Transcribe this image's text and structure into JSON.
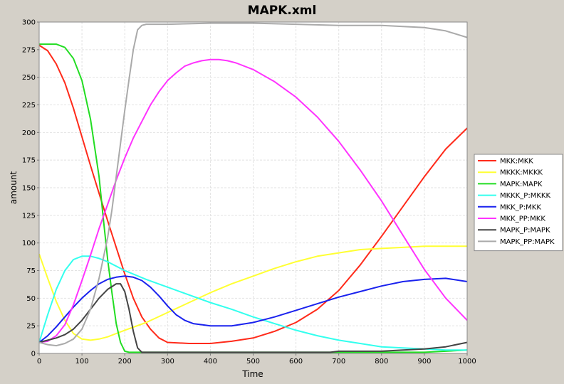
{
  "chart_data": {
    "type": "line",
    "title": "MAPK.xml",
    "xlabel": "Time",
    "ylabel": "amount",
    "xlim": [
      0,
      1000
    ],
    "ylim": [
      0,
      300
    ],
    "xticks": [
      0,
      100,
      200,
      300,
      400,
      500,
      600,
      700,
      800,
      900,
      1000
    ],
    "yticks": [
      0,
      25,
      50,
      75,
      100,
      125,
      150,
      175,
      200,
      225,
      250,
      275,
      300
    ],
    "grid": true,
    "legend_position": "right",
    "series": [
      {
        "name": "MKK:MKK",
        "color": "#ff2a1a",
        "x": [
          0,
          20,
          40,
          60,
          80,
          100,
          120,
          140,
          160,
          180,
          200,
          220,
          240,
          260,
          280,
          300,
          350,
          400,
          450,
          500,
          550,
          600,
          650,
          700,
          750,
          800,
          850,
          900,
          950,
          1000
        ],
        "y": [
          279,
          274,
          262,
          245,
          222,
          196,
          170,
          145,
          120,
          96,
          72,
          50,
          33,
          22,
          14,
          10,
          9,
          9,
          11,
          14,
          20,
          28,
          40,
          57,
          80,
          106,
          133,
          160,
          185,
          204
        ]
      },
      {
        "name": "MKKK:MKKK",
        "color": "#ffff33",
        "x": [
          0,
          20,
          40,
          60,
          80,
          100,
          120,
          140,
          160,
          180,
          200,
          250,
          300,
          350,
          400,
          450,
          500,
          550,
          600,
          650,
          700,
          750,
          800,
          850,
          900,
          950,
          1000
        ],
        "y": [
          90,
          68,
          47,
          30,
          18,
          13,
          12,
          13,
          15,
          18,
          21,
          28,
          37,
          46,
          55,
          63,
          70,
          77,
          83,
          88,
          91,
          94,
          95,
          96,
          97,
          97,
          97
        ]
      },
      {
        "name": "MAPK:MAPK",
        "color": "#22dd22",
        "x": [
          0,
          20,
          40,
          60,
          80,
          100,
          120,
          140,
          150,
          160,
          170,
          180,
          190,
          200,
          210,
          220,
          240,
          300,
          400,
          500,
          600,
          700,
          800,
          900,
          950,
          1000
        ],
        "y": [
          280,
          280,
          280,
          277,
          267,
          247,
          212,
          160,
          122,
          85,
          55,
          27,
          10,
          2,
          1,
          1,
          1,
          1,
          1,
          1,
          1,
          1,
          1,
          1,
          2,
          3
        ]
      },
      {
        "name": "MKKK_P:MKKK",
        "color": "#33ffee",
        "x": [
          0,
          20,
          40,
          60,
          80,
          100,
          120,
          140,
          160,
          180,
          200,
          250,
          300,
          350,
          400,
          450,
          500,
          550,
          600,
          650,
          700,
          750,
          800,
          850,
          900,
          950,
          1000
        ],
        "y": [
          10,
          35,
          58,
          75,
          85,
          88,
          88,
          86,
          83,
          79,
          75,
          67,
          60,
          53,
          46,
          40,
          33,
          27,
          21,
          16,
          12,
          9,
          6,
          5,
          4,
          3,
          3
        ]
      },
      {
        "name": "MKK_P:MKK",
        "color": "#1a22ee",
        "x": [
          0,
          20,
          40,
          60,
          80,
          100,
          120,
          140,
          160,
          180,
          200,
          220,
          240,
          260,
          280,
          300,
          320,
          340,
          360,
          380,
          400,
          420,
          450,
          500,
          550,
          600,
          650,
          700,
          750,
          800,
          850,
          900,
          950,
          1000
        ],
        "y": [
          10,
          16,
          24,
          33,
          42,
          50,
          57,
          63,
          67,
          69,
          70,
          69,
          66,
          60,
          52,
          43,
          35,
          30,
          27,
          26,
          25,
          25,
          25,
          28,
          33,
          39,
          45,
          51,
          56,
          61,
          65,
          67,
          68,
          65
        ]
      },
      {
        "name": "MKK_PP:MKK",
        "color": "#ff33ff",
        "x": [
          0,
          20,
          40,
          60,
          80,
          100,
          120,
          140,
          160,
          180,
          200,
          220,
          240,
          260,
          280,
          300,
          320,
          340,
          360,
          380,
          400,
          420,
          440,
          460,
          500,
          550,
          600,
          650,
          700,
          750,
          800,
          850,
          900,
          950,
          1000
        ],
        "y": [
          10,
          11,
          16,
          26,
          44,
          66,
          89,
          113,
          135,
          157,
          177,
          195,
          210,
          225,
          237,
          247,
          254,
          260,
          263,
          265,
          266,
          266,
          265,
          263,
          257,
          246,
          232,
          214,
          192,
          166,
          138,
          107,
          76,
          50,
          30
        ]
      },
      {
        "name": "MAPK_P:MAPK",
        "color": "#444444",
        "x": [
          0,
          20,
          40,
          60,
          80,
          100,
          120,
          140,
          160,
          180,
          190,
          200,
          210,
          220,
          230,
          240,
          250,
          300,
          400,
          500,
          600,
          680,
          700,
          800,
          850,
          900,
          950,
          1000
        ],
        "y": [
          10,
          12,
          14,
          17,
          22,
          30,
          40,
          50,
          58,
          63,
          63,
          56,
          40,
          20,
          5,
          1,
          1,
          1,
          1,
          1,
          1,
          1,
          2,
          2,
          3,
          4,
          6,
          10
        ]
      },
      {
        "name": "MAPK_PP:MAPK",
        "color": "#aaaaaa",
        "x": [
          0,
          20,
          40,
          60,
          80,
          100,
          120,
          140,
          160,
          170,
          180,
          190,
          200,
          210,
          220,
          230,
          240,
          250,
          260,
          300,
          400,
          500,
          600,
          700,
          800,
          850,
          900,
          950,
          1000
        ],
        "y": [
          10,
          8,
          7,
          9,
          13,
          22,
          40,
          68,
          105,
          130,
          160,
          190,
          220,
          248,
          275,
          293,
          297,
          298,
          298,
          298,
          299,
          299,
          298,
          297,
          297,
          296,
          295,
          292,
          286
        ]
      }
    ]
  }
}
